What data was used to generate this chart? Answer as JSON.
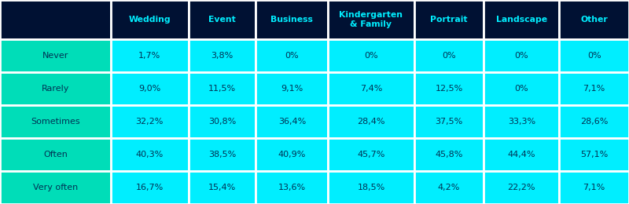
{
  "header_labels": [
    "",
    "Wedding",
    "Event",
    "Business",
    "Kindergarten\n& Family",
    "Portrait",
    "Landscape",
    "Other"
  ],
  "row_labels": [
    "Never",
    "Rarely",
    "Sometimes",
    "Often",
    "Very often"
  ],
  "cell_data": [
    [
      "1,7%",
      "3,8%",
      "0%",
      "0%",
      "0%",
      "0%",
      "0%"
    ],
    [
      "9,0%",
      "11,5%",
      "9,1%",
      "7,4%",
      "12,5%",
      "0%",
      "7,1%"
    ],
    [
      "32,2%",
      "30,8%",
      "36,4%",
      "28,4%",
      "37,5%",
      "33,3%",
      "28,6%"
    ],
    [
      "40,3%",
      "38,5%",
      "40,9%",
      "45,7%",
      "45,8%",
      "44,4%",
      "57,1%"
    ],
    [
      "16,7%",
      "15,4%",
      "13,6%",
      "18,5%",
      "4,2%",
      "22,2%",
      "7,1%"
    ]
  ],
  "header_bg_color": "#001133",
  "header_text_color": "#00EEFF",
  "row_label_bg_color": "#00DDB8",
  "row_label_text_color": "#003355",
  "cell_bg_color": "#00EEFF",
  "cell_text_color": "#003355",
  "grid_color": "#FFFFFF",
  "col_widths": [
    1.35,
    0.95,
    0.82,
    0.88,
    1.05,
    0.85,
    0.92,
    0.85
  ],
  "row_heights": [
    1.15,
    0.97,
    0.97,
    0.97,
    0.97,
    0.97
  ],
  "n_cols": 8,
  "n_rows": 6,
  "figsize": [
    8.0,
    2.6
  ],
  "dpi": 100
}
